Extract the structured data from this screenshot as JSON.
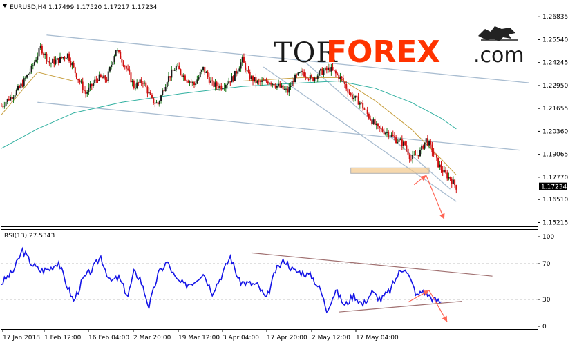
{
  "chart_data": [
    {
      "type": "candlestick",
      "title": "EURUSD,H4  1.17499 1.17520 1.17217 1.17234",
      "symbol": "EURUSD",
      "timeframe": "H4",
      "ohlc_label": "1.17499 1.17520 1.17217 1.17234",
      "last_price": "1.17234",
      "ylim": [
        1.15,
        1.277
      ],
      "y_ticks": [
        "1.26835",
        "1.25540",
        "1.24245",
        "1.22950",
        "1.21655",
        "1.20360",
        "1.19065",
        "1.17770",
        "1.16510",
        "1.15215"
      ],
      "x_ticks": [
        "17 Jan 2018",
        "1 Feb 12:00",
        "16 Feb 04:00",
        "2 Mar 20:00",
        "19 Mar 12:00",
        "3 Apr 04:00",
        "17 Apr 20:00",
        "2 May 12:00",
        "17 May 04:00"
      ],
      "close_path": [
        {
          "x": 0,
          "y": 1.218
        },
        {
          "x": 6,
          "y": 1.228
        },
        {
          "x": 10,
          "y": 1.239
        },
        {
          "x": 13,
          "y": 1.251
        },
        {
          "x": 16,
          "y": 1.242
        },
        {
          "x": 19,
          "y": 1.244
        },
        {
          "x": 22,
          "y": 1.247
        },
        {
          "x": 25,
          "y": 1.235
        },
        {
          "x": 28,
          "y": 1.225
        },
        {
          "x": 32,
          "y": 1.234
        },
        {
          "x": 35,
          "y": 1.233
        },
        {
          "x": 38,
          "y": 1.25
        },
        {
          "x": 41,
          "y": 1.241
        },
        {
          "x": 44,
          "y": 1.229
        },
        {
          "x": 47,
          "y": 1.232
        },
        {
          "x": 50,
          "y": 1.221
        },
        {
          "x": 52,
          "y": 1.219
        },
        {
          "x": 55,
          "y": 1.233
        },
        {
          "x": 58,
          "y": 1.24
        },
        {
          "x": 61,
          "y": 1.234
        },
        {
          "x": 64,
          "y": 1.23
        },
        {
          "x": 67,
          "y": 1.239
        },
        {
          "x": 70,
          "y": 1.23
        },
        {
          "x": 73,
          "y": 1.229
        },
        {
          "x": 77,
          "y": 1.234
        },
        {
          "x": 80,
          "y": 1.244
        },
        {
          "x": 82,
          "y": 1.235
        },
        {
          "x": 85,
          "y": 1.231
        },
        {
          "x": 89,
          "y": 1.232
        },
        {
          "x": 92,
          "y": 1.229
        },
        {
          "x": 95,
          "y": 1.226
        },
        {
          "x": 97,
          "y": 1.233
        },
        {
          "x": 100,
          "y": 1.237
        },
        {
          "x": 103,
          "y": 1.233
        },
        {
          "x": 106,
          "y": 1.237
        },
        {
          "x": 109,
          "y": 1.239
        },
        {
          "x": 111,
          "y": 1.236
        },
        {
          "x": 113,
          "y": 1.233
        },
        {
          "x": 116,
          "y": 1.224
        },
        {
          "x": 119,
          "y": 1.22
        },
        {
          "x": 122,
          "y": 1.212
        },
        {
          "x": 125,
          "y": 1.205
        },
        {
          "x": 128,
          "y": 1.203
        },
        {
          "x": 131,
          "y": 1.199
        },
        {
          "x": 134,
          "y": 1.196
        },
        {
          "x": 136,
          "y": 1.188
        },
        {
          "x": 139,
          "y": 1.192
        },
        {
          "x": 141,
          "y": 1.199
        },
        {
          "x": 143,
          "y": 1.193
        },
        {
          "x": 145,
          "y": 1.185
        },
        {
          "x": 147,
          "y": 1.18
        },
        {
          "x": 149,
          "y": 1.177
        },
        {
          "x": 151,
          "y": 1.1723
        }
      ],
      "moving_averages": [
        {
          "name": "MA fast",
          "color": "#c8a040",
          "points": [
            {
              "x": 0,
              "y": 1.213
            },
            {
              "x": 12,
              "y": 1.237
            },
            {
              "x": 24,
              "y": 1.232
            },
            {
              "x": 40,
              "y": 1.232
            },
            {
              "x": 60,
              "y": 1.232
            },
            {
              "x": 80,
              "y": 1.232
            },
            {
              "x": 100,
              "y": 1.234
            },
            {
              "x": 112,
              "y": 1.234
            },
            {
              "x": 124,
              "y": 1.221
            },
            {
              "x": 136,
              "y": 1.205
            },
            {
              "x": 146,
              "y": 1.188
            },
            {
              "x": 151,
              "y": 1.179
            }
          ]
        },
        {
          "name": "MA slow",
          "color": "#30b0a0",
          "points": [
            {
              "x": 0,
              "y": 1.194
            },
            {
              "x": 12,
              "y": 1.205
            },
            {
              "x": 24,
              "y": 1.214
            },
            {
              "x": 40,
              "y": 1.22
            },
            {
              "x": 60,
              "y": 1.225
            },
            {
              "x": 80,
              "y": 1.229
            },
            {
              "x": 100,
              "y": 1.231
            },
            {
              "x": 112,
              "y": 1.232
            },
            {
              "x": 124,
              "y": 1.228
            },
            {
              "x": 136,
              "y": 1.22
            },
            {
              "x": 146,
              "y": 1.211
            },
            {
              "x": 151,
              "y": 1.205
            }
          ]
        }
      ],
      "trend_channels": [
        {
          "color": "#a8bcd0",
          "from": {
            "x": 15,
            "y": 1.258
          },
          "to": {
            "x": 175,
            "y": 1.231
          }
        },
        {
          "color": "#a8bcd0",
          "from": {
            "x": 12,
            "y": 1.22
          },
          "to": {
            "x": 172,
            "y": 1.193
          }
        },
        {
          "color": "#a8bcd0",
          "from": {
            "x": 87,
            "y": 1.24
          },
          "to": {
            "x": 151,
            "y": 1.164
          }
        },
        {
          "color": "#a8bcd0",
          "from": {
            "x": 100,
            "y": 1.244
          },
          "to": {
            "x": 149,
            "y": 1.171
          }
        }
      ],
      "resistance_zone": {
        "x0": 116,
        "x1": 142,
        "y0": 1.181,
        "y1": 1.183,
        "color": "#f2c88a"
      },
      "forecast_arrows": {
        "color": "#ff6655",
        "points": [
          {
            "x": 137,
            "y": 1.1735
          },
          {
            "x": 141,
            "y": 1.1788
          },
          {
            "x": 147,
            "y": 1.154
          }
        ]
      }
    },
    {
      "type": "line",
      "title": "RSI(13) 27.5343",
      "indicator": "RSI(13)",
      "value": "27.5343",
      "ylim": [
        0,
        100
      ],
      "y_ticks": [
        "100",
        "70",
        "30",
        "0"
      ],
      "series": [
        {
          "color": "#1414e6",
          "points": [
            {
              "x": 0,
              "y": 48
            },
            {
              "x": 4,
              "y": 62
            },
            {
              "x": 7,
              "y": 85
            },
            {
              "x": 10,
              "y": 70
            },
            {
              "x": 13,
              "y": 62
            },
            {
              "x": 16,
              "y": 64
            },
            {
              "x": 19,
              "y": 72
            },
            {
              "x": 21,
              "y": 52
            },
            {
              "x": 24,
              "y": 28
            },
            {
              "x": 27,
              "y": 52
            },
            {
              "x": 30,
              "y": 63
            },
            {
              "x": 33,
              "y": 78
            },
            {
              "x": 36,
              "y": 50
            },
            {
              "x": 39,
              "y": 54
            },
            {
              "x": 42,
              "y": 34
            },
            {
              "x": 44,
              "y": 60
            },
            {
              "x": 46,
              "y": 54
            },
            {
              "x": 49,
              "y": 22
            },
            {
              "x": 52,
              "y": 58
            },
            {
              "x": 55,
              "y": 72
            },
            {
              "x": 58,
              "y": 52
            },
            {
              "x": 61,
              "y": 46
            },
            {
              "x": 64,
              "y": 50
            },
            {
              "x": 67,
              "y": 60
            },
            {
              "x": 70,
              "y": 38
            },
            {
              "x": 73,
              "y": 56
            },
            {
              "x": 76,
              "y": 78
            },
            {
              "x": 79,
              "y": 50
            },
            {
              "x": 82,
              "y": 48
            },
            {
              "x": 85,
              "y": 46
            },
            {
              "x": 88,
              "y": 30
            },
            {
              "x": 91,
              "y": 62
            },
            {
              "x": 94,
              "y": 74
            },
            {
              "x": 97,
              "y": 62
            },
            {
              "x": 100,
              "y": 60
            },
            {
              "x": 103,
              "y": 56
            },
            {
              "x": 106,
              "y": 40
            },
            {
              "x": 108,
              "y": 18
            },
            {
              "x": 111,
              "y": 40
            },
            {
              "x": 114,
              "y": 23
            },
            {
              "x": 117,
              "y": 35
            },
            {
              "x": 120,
              "y": 24
            },
            {
              "x": 123,
              "y": 38
            },
            {
              "x": 126,
              "y": 30
            },
            {
              "x": 129,
              "y": 40
            },
            {
              "x": 132,
              "y": 60
            },
            {
              "x": 134,
              "y": 66
            },
            {
              "x": 136,
              "y": 50
            },
            {
              "x": 138,
              "y": 34
            },
            {
              "x": 140,
              "y": 40
            },
            {
              "x": 142,
              "y": 34
            },
            {
              "x": 144,
              "y": 29
            },
            {
              "x": 146,
              "y": 27.5
            }
          ]
        }
      ],
      "trend_lines": [
        {
          "color": "#a07070",
          "from": {
            "x": 83,
            "y": 82
          },
          "to": {
            "x": 163,
            "y": 56
          }
        },
        {
          "color": "#a07070",
          "from": {
            "x": 112,
            "y": 16
          },
          "to": {
            "x": 153,
            "y": 28
          }
        }
      ],
      "forecast_arrows": {
        "color": "#ff6655",
        "points": [
          {
            "x": 135,
            "y": 27
          },
          {
            "x": 142,
            "y": 40
          },
          {
            "x": 148,
            "y": 5
          }
        ]
      }
    }
  ],
  "logo": {
    "tor": "TOR",
    "forex": "FOREX",
    ".com": ".com"
  }
}
